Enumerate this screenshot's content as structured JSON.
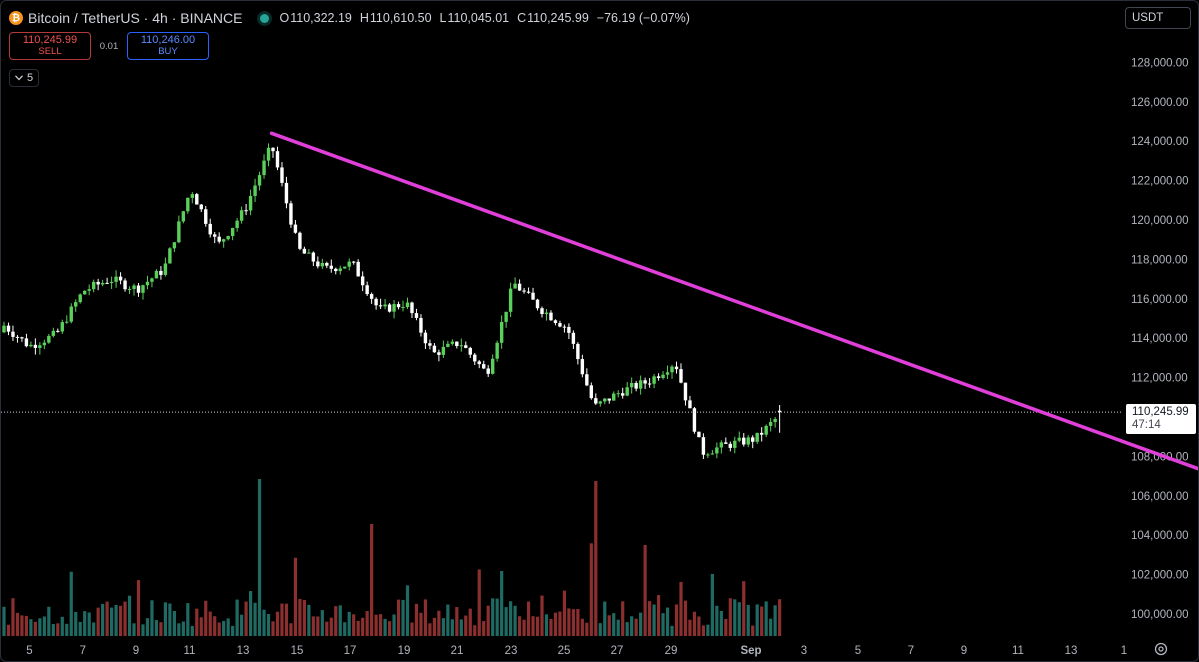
{
  "header": {
    "symbol": "Bitcoin / TetherUS · 4h · BINANCE",
    "coin_icon": "bitcoin-icon",
    "open_label": "O",
    "open_value": "110,322.19",
    "high_label": "H",
    "high_value": "110,610.50",
    "low_label": "L",
    "low_value": "110,045.01",
    "close_label": "C",
    "close_value": "110,245.99",
    "change": "−76.19 (−0.07%)"
  },
  "trade": {
    "sell_price": "110,245.99",
    "sell_label": "SELL",
    "spread": "0.01",
    "buy_price": "110,246.00",
    "buy_label": "BUY"
  },
  "indicators_toggle": "5",
  "currency": "USDT",
  "last_price": {
    "value": "110,245.99",
    "countdown": "47:14"
  },
  "colors": {
    "up": "#26a69a",
    "up_body": "#5ad05a",
    "down": "#ffffff",
    "volume_up": "#1f6b63",
    "volume_down": "#8b2f2f",
    "trendline": "#e040d9",
    "background": "#000000"
  },
  "chart_data": {
    "type": "candlestick",
    "interval": "4h",
    "ylim": [
      99500,
      129800
    ],
    "y_ticks": [
      "100,000.00",
      "102,000.00",
      "104,000.00",
      "106,000.00",
      "108,000.00",
      "110,000.00",
      "112,000.00",
      "114,000.00",
      "116,000.00",
      "118,000.00",
      "120,000.00",
      "122,000.00",
      "124,000.00",
      "126,000.00",
      "128,000.00"
    ],
    "x_ticks": [
      "5",
      "7",
      "9",
      "11",
      "13",
      "15",
      "17",
      "19",
      "21",
      "23",
      "25",
      "27",
      "29",
      "Sep",
      "3",
      "5",
      "7",
      "9",
      "11",
      "13",
      "1"
    ],
    "grid": false,
    "anchors": [
      [
        "Aug 3",
        114300
      ],
      [
        "Aug 4",
        114700
      ],
      [
        "Aug 5",
        113600
      ],
      [
        "Aug 6",
        114200
      ],
      [
        "Aug 7",
        116400
      ],
      [
        "Aug 8",
        117000
      ],
      [
        "Aug 9",
        116500
      ],
      [
        "Aug 10",
        117500
      ],
      [
        "Aug 11",
        121600
      ],
      [
        "Aug 12",
        118700
      ],
      [
        "Aug 13",
        120500
      ],
      [
        "Aug 14",
        123800
      ],
      [
        "Aug 15",
        118500
      ],
      [
        "Aug 16",
        117500
      ],
      [
        "Aug 17",
        117800
      ],
      [
        "Aug 18",
        115400
      ],
      [
        "Aug 19",
        115800
      ],
      [
        "Aug 20",
        113200
      ],
      [
        "Aug 21",
        113800
      ],
      [
        "Aug 22",
        112200
      ],
      [
        "Aug 23",
        116800
      ],
      [
        "Aug 24",
        115500
      ],
      [
        "Aug 25",
        114500
      ],
      [
        "Aug 26",
        110500
      ],
      [
        "Aug 27",
        111300
      ],
      [
        "Aug 28",
        111800
      ],
      [
        "Aug 29",
        112800
      ],
      [
        "Aug 30",
        108200
      ],
      [
        "Aug 31",
        108600
      ],
      [
        "Sep 1",
        108900
      ],
      [
        "Sep 2",
        110246
      ]
    ],
    "trendline": {
      "start": [
        "Aug 14",
        124400
      ],
      "end": [
        "Oct 1",
        100200
      ]
    },
    "current_price": 110245.99
  }
}
